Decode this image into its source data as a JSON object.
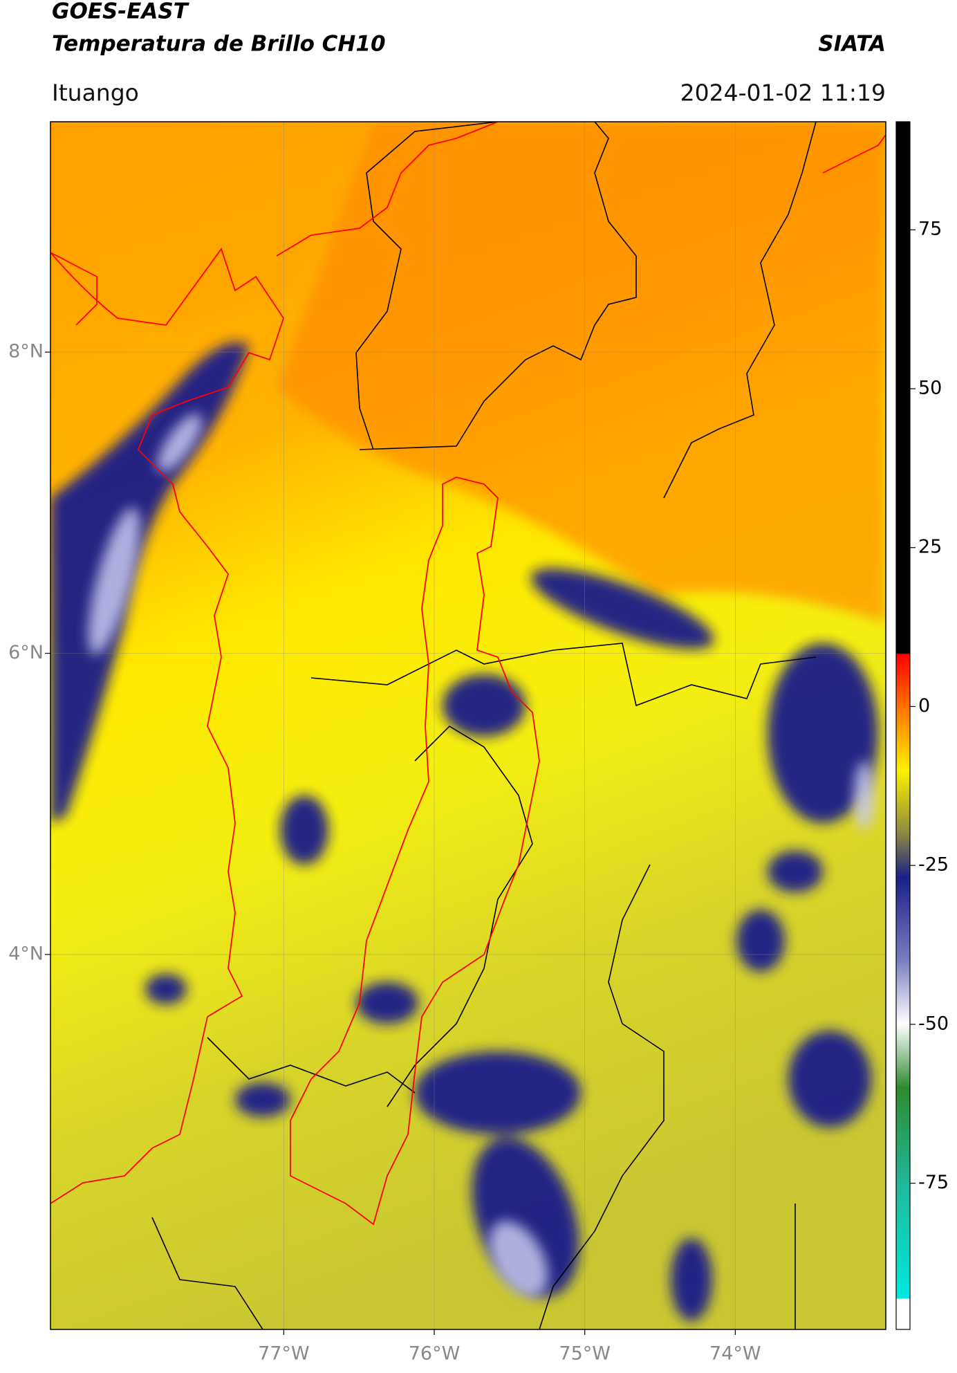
{
  "header": {
    "title": "GOES-EAST",
    "subtitle": "Temperatura de Brillo CH10",
    "source": "SIATA",
    "region": "Ituango",
    "datetime": "2024-01-02 11:19"
  },
  "map": {
    "xlim": [
      -78.55,
      -73.0
    ],
    "ylim": [
      1.51,
      9.53
    ],
    "xticks": [
      {
        "value": -77,
        "label": "77°W"
      },
      {
        "value": -76,
        "label": "76°W"
      },
      {
        "value": -75,
        "label": "75°W"
      },
      {
        "value": -74,
        "label": "74°W"
      }
    ],
    "yticks": [
      {
        "value": 8,
        "label": "8°N"
      },
      {
        "value": 6,
        "label": "6°N"
      },
      {
        "value": 4,
        "label": "4°N"
      }
    ]
  },
  "colorbar": {
    "lim": [
      -98,
      92
    ],
    "ticks": [
      75,
      50,
      25,
      0,
      -25,
      -50,
      -75
    ]
  }
}
